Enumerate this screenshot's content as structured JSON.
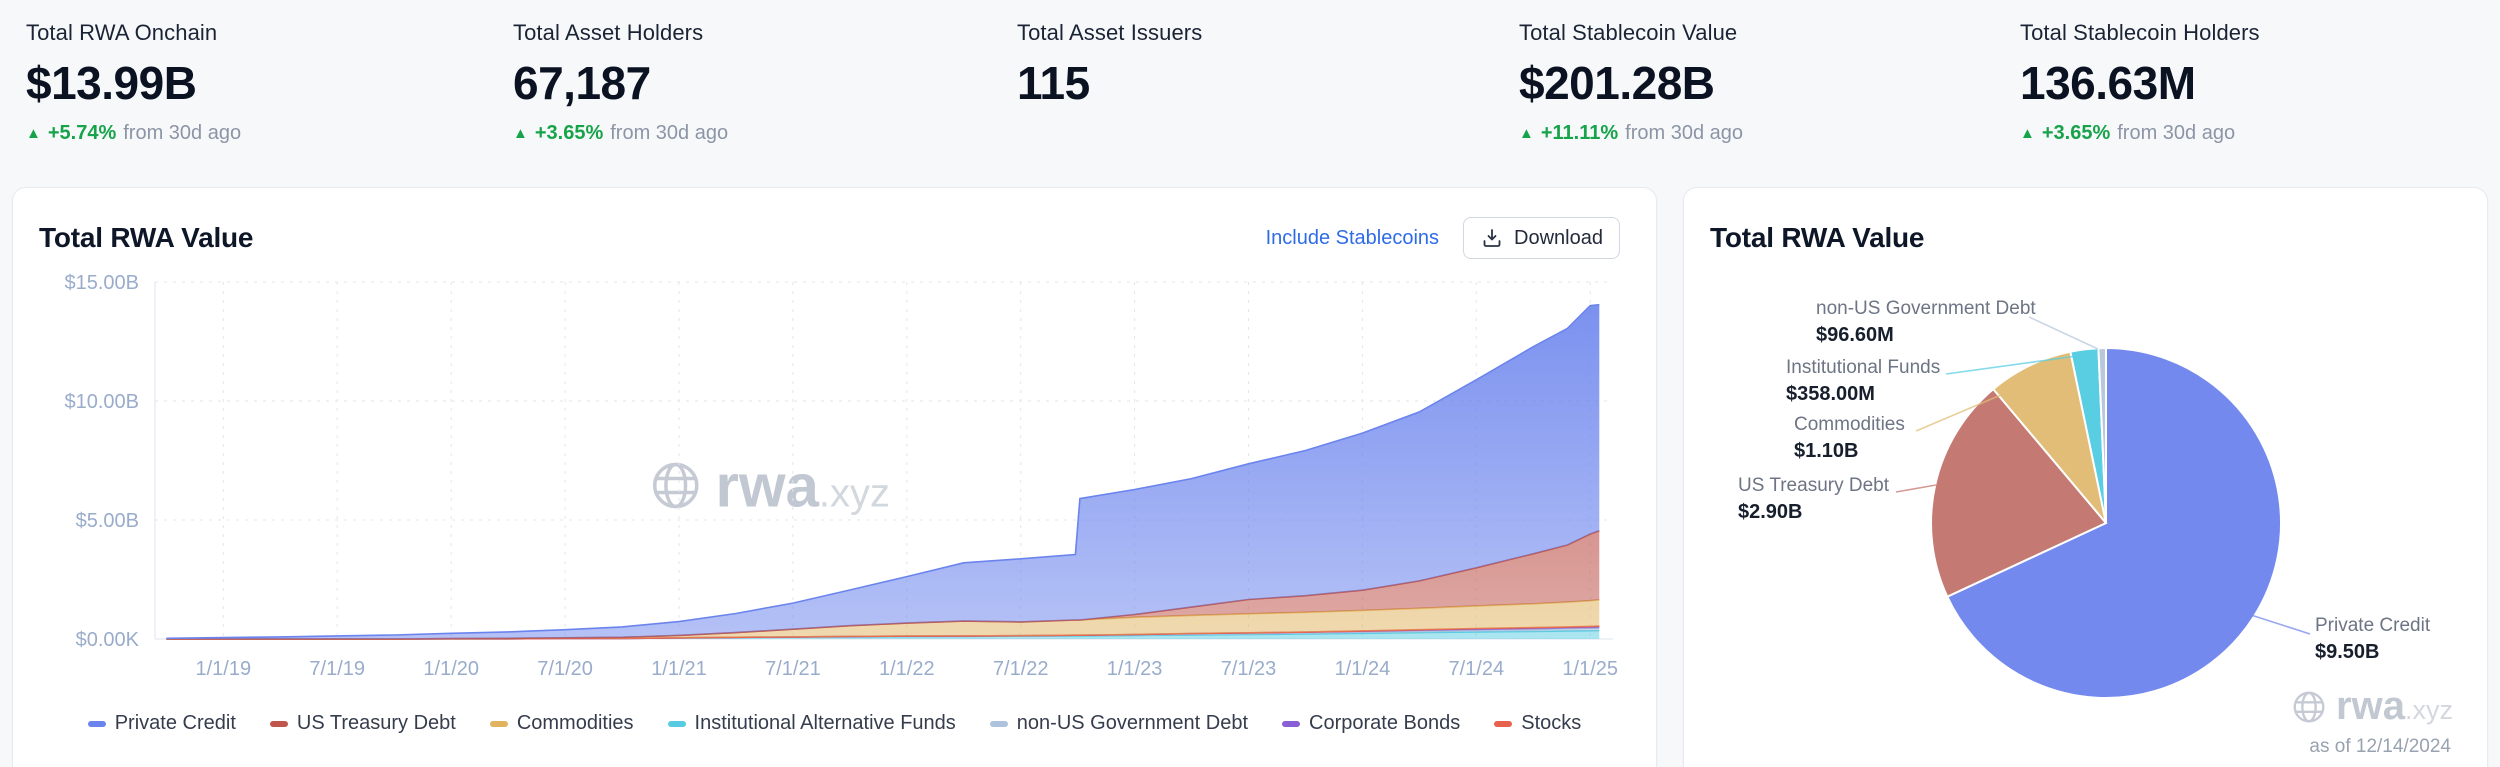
{
  "stats": [
    {
      "label": "Total RWA Onchain",
      "value": "$13.99B",
      "delta": "+5.74%",
      "delta_suffix": "from 30d ago"
    },
    {
      "label": "Total Asset Holders",
      "value": "67,187",
      "delta": "+3.65%",
      "delta_suffix": "from 30d ago"
    },
    {
      "label": "Total Asset Issuers",
      "value": "115"
    },
    {
      "label": "Total Stablecoin Value",
      "value": "$201.28B",
      "delta": "+11.11%",
      "delta_suffix": "from 30d ago"
    },
    {
      "label": "Total Stablecoin Holders",
      "value": "136.63M",
      "delta": "+3.65%",
      "delta_suffix": "from 30d ago"
    }
  ],
  "area_card": {
    "title": "Total RWA Value",
    "include_stablecoins_label": "Include Stablecoins",
    "download_label": "Download",
    "watermark": {
      "name": "rwa",
      "tld": ".xyz"
    }
  },
  "pie_card": {
    "title": "Total RWA Value",
    "as_of": "as of 12/14/2024",
    "watermark": {
      "name": "rwa",
      "tld": ".xyz"
    }
  },
  "colors": {
    "delta_green": "#16a34a",
    "link_blue": "#2e6be6"
  },
  "chart_data": [
    {
      "type": "area",
      "title": "Total RWA Value",
      "stacked": true,
      "unit": "USD billions",
      "ylim": [
        0,
        15
      ],
      "grid": true,
      "legend_position": "bottom",
      "y_ticks": [
        {
          "value": 0,
          "label": "$0.00K"
        },
        {
          "value": 5,
          "label": "$5.00B"
        },
        {
          "value": 10,
          "label": "$10.00B"
        },
        {
          "value": 15,
          "label": "$15.00B"
        }
      ],
      "x_ticks": [
        {
          "year": 2019.0,
          "label": "1/1/19"
        },
        {
          "year": 2019.5,
          "label": "7/1/19"
        },
        {
          "year": 2020.0,
          "label": "1/1/20"
        },
        {
          "year": 2020.5,
          "label": "7/1/20"
        },
        {
          "year": 2021.0,
          "label": "1/1/21"
        },
        {
          "year": 2021.5,
          "label": "7/1/21"
        },
        {
          "year": 2022.0,
          "label": "1/1/22"
        },
        {
          "year": 2022.5,
          "label": "7/1/22"
        },
        {
          "year": 2023.0,
          "label": "1/1/23"
        },
        {
          "year": 2023.5,
          "label": "7/1/23"
        },
        {
          "year": 2024.0,
          "label": "1/1/24"
        },
        {
          "year": 2024.5,
          "label": "7/1/24"
        },
        {
          "year": 2025.0,
          "label": "1/1/25"
        }
      ],
      "x": [
        2018.75,
        2019.0,
        2019.25,
        2019.5,
        2019.75,
        2020.0,
        2020.25,
        2020.5,
        2020.75,
        2021.0,
        2021.25,
        2021.5,
        2021.75,
        2022.0,
        2022.25,
        2022.5,
        2022.74,
        2022.76,
        2023.0,
        2023.25,
        2023.5,
        2023.75,
        2024.0,
        2024.25,
        2024.5,
        2024.75,
        2024.9,
        2025.0,
        2025.04
      ],
      "stack_order": [
        3,
        4,
        5,
        6,
        2,
        1,
        0
      ],
      "series": [
        {
          "name": "Private Credit",
          "color": "#6b84ed",
          "values": [
            0.03,
            0.06,
            0.09,
            0.13,
            0.17,
            0.22,
            0.27,
            0.34,
            0.44,
            0.58,
            0.8,
            1.1,
            1.5,
            1.95,
            2.45,
            2.65,
            2.75,
            5.1,
            5.25,
            5.4,
            5.7,
            6.1,
            6.6,
            7.1,
            7.9,
            8.7,
            9.1,
            9.6,
            9.5
          ]
        },
        {
          "name": "US Treasury Debt",
          "color": "#bf564e",
          "values": [
            0,
            0,
            0,
            0,
            0,
            0,
            0,
            0,
            0,
            0,
            0,
            0,
            0,
            0,
            0,
            0,
            0,
            0,
            0.12,
            0.35,
            0.6,
            0.7,
            0.85,
            1.15,
            1.6,
            2.1,
            2.4,
            2.8,
            2.9
          ]
        },
        {
          "name": "Commodities",
          "color": "#e0b35f",
          "values": [
            0,
            0,
            0,
            0,
            0,
            0.01,
            0.02,
            0.03,
            0.05,
            0.1,
            0.2,
            0.32,
            0.45,
            0.55,
            0.62,
            0.58,
            0.64,
            0.64,
            0.72,
            0.76,
            0.8,
            0.83,
            0.86,
            0.9,
            0.95,
            1.0,
            1.04,
            1.08,
            1.1
          ]
        },
        {
          "name": "Institutional Alternative Funds",
          "color": "#56cbe1",
          "values": [
            0,
            0,
            0,
            0,
            0,
            0.01,
            0.01,
            0.02,
            0.02,
            0.04,
            0.06,
            0.08,
            0.09,
            0.1,
            0.11,
            0.12,
            0.13,
            0.13,
            0.15,
            0.17,
            0.19,
            0.21,
            0.24,
            0.27,
            0.3,
            0.32,
            0.34,
            0.35,
            0.36
          ]
        },
        {
          "name": "non-US Government Debt",
          "color": "#aec2de",
          "values": [
            0,
            0,
            0,
            0,
            0,
            0,
            0,
            0,
            0,
            0.01,
            0.01,
            0.01,
            0.02,
            0.02,
            0.02,
            0.02,
            0.03,
            0.03,
            0.03,
            0.04,
            0.04,
            0.05,
            0.05,
            0.06,
            0.07,
            0.08,
            0.09,
            0.09,
            0.097
          ]
        },
        {
          "name": "Corporate Bonds",
          "color": "#8a5fd6",
          "values": [
            0,
            0,
            0,
            0,
            0,
            0,
            0,
            0,
            0,
            0,
            0,
            0,
            0,
            0,
            0,
            0,
            0,
            0,
            0.01,
            0.02,
            0.03,
            0.03,
            0.04,
            0.05,
            0.05,
            0.06,
            0.06,
            0.06,
            0.06
          ]
        },
        {
          "name": "Stocks",
          "color": "#e8614e",
          "values": [
            0,
            0,
            0,
            0,
            0,
            0,
            0,
            0,
            0,
            0,
            0,
            0,
            0,
            0,
            0,
            0,
            0,
            0,
            0,
            0,
            0,
            0,
            0.01,
            0.01,
            0.02,
            0.02,
            0.02,
            0.03,
            0.03
          ]
        }
      ]
    },
    {
      "type": "pie",
      "title": "Total RWA Value",
      "as_of": "as of 12/14/2024",
      "slices": [
        {
          "name": "Private Credit",
          "value_label": "$9.50B",
          "value_billions": 9.5,
          "color": "#7489ee"
        },
        {
          "name": "US Treasury Debt",
          "value_label": "$2.90B",
          "value_billions": 2.9,
          "color": "#c47a72"
        },
        {
          "name": "Commodities",
          "value_label": "$1.10B",
          "value_billions": 1.1,
          "color": "#e2bd77"
        },
        {
          "name": "Institutional Funds",
          "value_label": "$358.00M",
          "value_billions": 0.358,
          "color": "#59cde2"
        },
        {
          "name": "non-US Government Debt",
          "value_label": "$96.60M",
          "value_billions": 0.0966,
          "color": "#b9c7dc"
        }
      ]
    }
  ]
}
